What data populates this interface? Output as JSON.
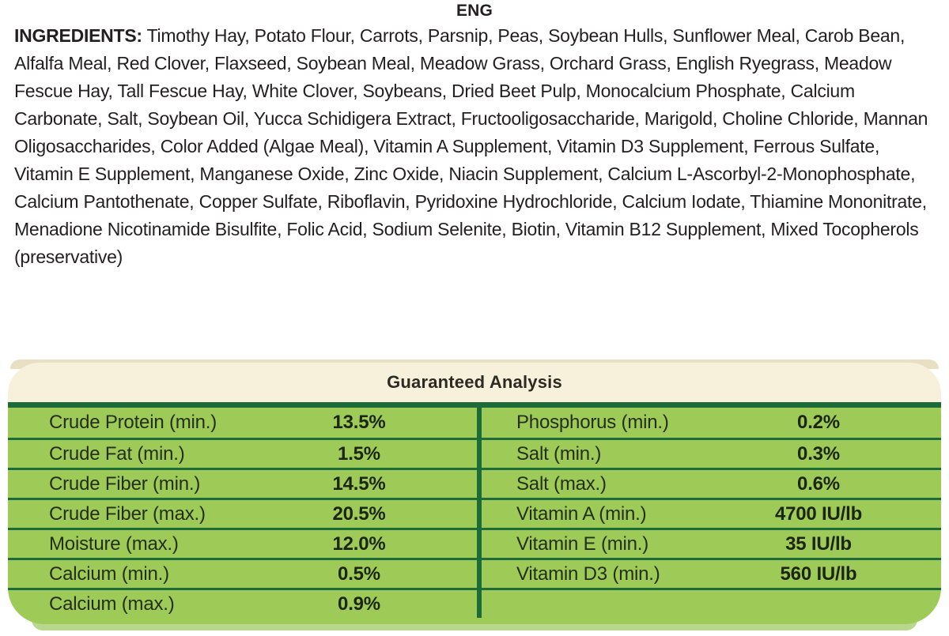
{
  "page": {
    "language_label": "ENG"
  },
  "ingredients": {
    "label": "INGREDIENTS:",
    "text": "Timothy Hay, Potato Flour, Carrots, Parsnip, Peas, Soybean Hulls, Sunflower Meal, Carob Bean, Alfalfa Meal, Red Clover, Flaxseed, Soybean Meal, Meadow Grass, Orchard Grass, English Ryegrass, Meadow Fescue Hay, Tall Fescue Hay, White Clover, Soybeans, Dried Beet Pulp, Monocalcium Phosphate, Calcium Carbonate, Salt, Soybean Oil, Yucca Schidigera Extract, Fructooligosaccharide, Marigold, Choline Chloride, Mannan Oligosaccharides, Color Added (Algae Meal), Vitamin A Supplement, Vitamin D3 Supplement, Ferrous Sulfate, Vitamin E Supplement, Manganese Oxide, Zinc Oxide, Niacin Supplement, Calcium L-Ascorbyl-2-Monophosphate, Calcium Pantothenate, Copper Sulfate, Riboflavin, Pyridoxine Hydrochloride, Calcium Iodate, Thiamine Mononitrate, Menadione Nicotinamide Bisulfite, Folic Acid, Sodium Selenite, Biotin, Vitamin B12 Supplement, Mixed Tocopherols (preservative)"
  },
  "guaranteed_analysis": {
    "title": "Guaranteed Analysis",
    "left_rows": [
      {
        "label": "Crude Protein (min.)",
        "value": "13.5%"
      },
      {
        "label": "Crude Fat (min.)",
        "value": "1.5%"
      },
      {
        "label": "Crude Fiber (min.)",
        "value": "14.5%"
      },
      {
        "label": "Crude Fiber (max.)",
        "value": "20.5%"
      },
      {
        "label": "Moisture (max.)",
        "value": "12.0%"
      },
      {
        "label": "Calcium (min.)",
        "value": "0.5%"
      },
      {
        "label": "Calcium (max.)",
        "value": "0.9%"
      }
    ],
    "right_rows": [
      {
        "label": "Phosphorus (min.)",
        "value": "0.2%"
      },
      {
        "label": "Salt (min.)",
        "value": "0.3%"
      },
      {
        "label": "Salt (max.)",
        "value": "0.6%"
      },
      {
        "label": "Vitamin A (min.)",
        "value": "4700 IU/lb"
      },
      {
        "label": "Vitamin E (min.)",
        "value": "35 IU/lb"
      },
      {
        "label": "Vitamin D3 (min.)",
        "value": "560 IU/lb"
      }
    ]
  },
  "colors": {
    "cream": "#f7f0db",
    "cream-edge": "#e9dfc2",
    "dark-green": "#1c6b38",
    "row-green": "#9ecb58",
    "light-green-edge": "#b9d78d",
    "text-dark": "#231f20"
  }
}
